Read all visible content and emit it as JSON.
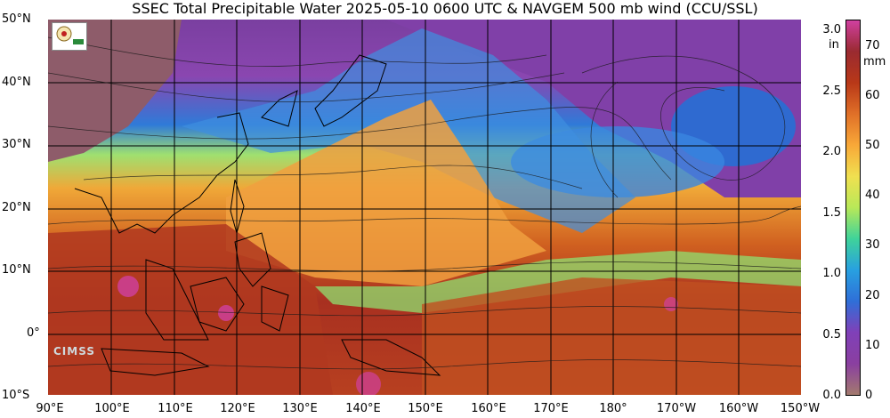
{
  "title": "SSEC Total Precipitable Water  2025-05-10 0600 UTC & NAVGEM 500 mb wind (CCU/SSL)",
  "latitude_labels": [
    "50°N",
    "40°N",
    "30°N",
    "20°N",
    "10°N",
    "0°",
    "10°S"
  ],
  "longitude_labels": [
    "90°E",
    "100°E",
    "110°E",
    "120°E",
    "130°E",
    "140°E",
    "150°E",
    "160°E",
    "170°E",
    "180°",
    "170°W",
    "160°W",
    "150°W"
  ],
  "colorbar": {
    "mm_unit": "mm",
    "in_unit": "in",
    "mm_ticks": [
      "0",
      "10",
      "20",
      "30",
      "40",
      "50",
      "60",
      "70"
    ],
    "in_ticks": [
      "0.0",
      "0.5",
      "1.0",
      "1.5",
      "2.0",
      "2.5",
      "3.0"
    ],
    "colors": [
      "#a37a6e",
      "#8a3fa0",
      "#8040b8",
      "#2f6fd8",
      "#28a0e0",
      "#3fd39a",
      "#b8e858",
      "#f0e050",
      "#f8a838",
      "#e07028",
      "#b83818",
      "#9a2a30",
      "#d040a0"
    ]
  },
  "logos": {
    "ssec": "SSEC logo",
    "cimss": "CIMSS"
  },
  "colors": {
    "dry": "#8a3fa0",
    "moist_mid": "#28a0e0",
    "moist_high": "#f8a838",
    "very_moist": "#9a2a30"
  }
}
